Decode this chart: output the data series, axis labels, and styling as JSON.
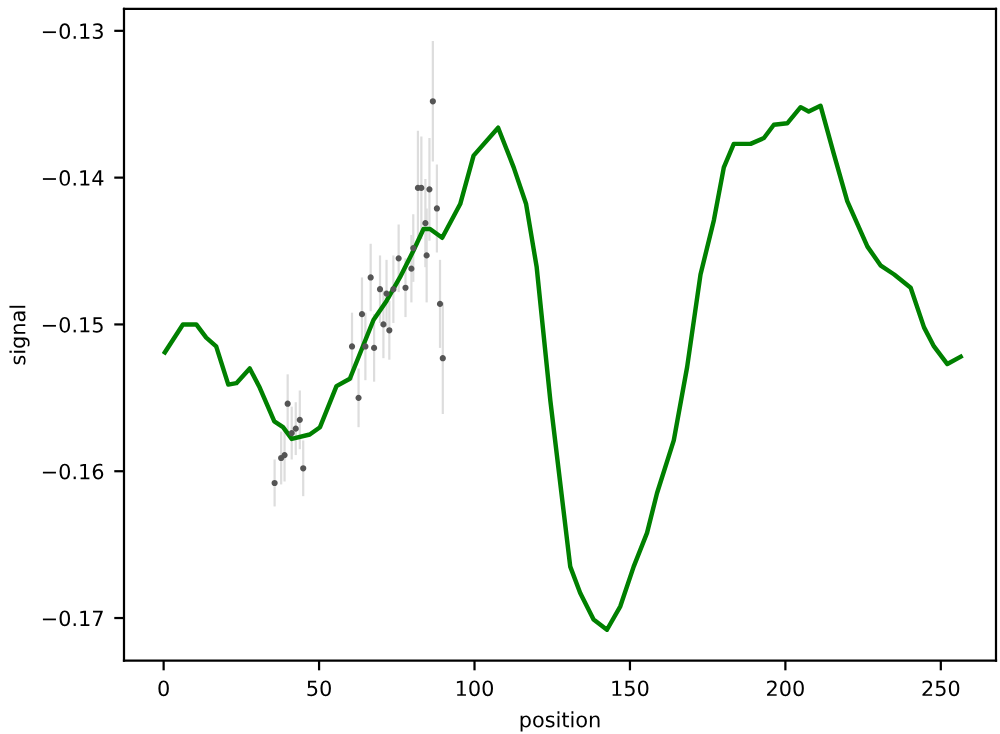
{
  "chart_data": {
    "type": "line",
    "xlabel": "position",
    "ylabel": "signal",
    "xlim": [
      -12.75,
      267.75
    ],
    "ylim": [
      -0.1729,
      -0.1285
    ],
    "xticks": [
      0,
      50,
      100,
      150,
      200,
      250
    ],
    "yticks": [
      {
        "value": -0.17,
        "label": "−0.17"
      },
      {
        "value": -0.16,
        "label": "−0.16"
      },
      {
        "value": -0.15,
        "label": "−0.15"
      },
      {
        "value": -0.14,
        "label": "−0.14"
      },
      {
        "value": -0.13,
        "label": "−0.13"
      }
    ],
    "grid": false,
    "series": [
      {
        "type": "scatter",
        "color": "#555555",
        "marker": "circle",
        "x": [
          35.7,
          37.8,
          38.9,
          39.9,
          41.2,
          42.5,
          43.8,
          44.9,
          60.6,
          62.7,
          63.8,
          64.9,
          66.6,
          67.7,
          69.6,
          70.7,
          71.7,
          72.6,
          73.9,
          75.6,
          77.8,
          79.7,
          80.3,
          81.8,
          82.9,
          84.2,
          84.6,
          85.5,
          86.6,
          87.9,
          88.9,
          89.8
        ],
        "values": [
          -0.1608,
          -0.1591,
          -0.1589,
          -0.1554,
          -0.1574,
          -0.1571,
          -0.1565,
          -0.1598,
          -0.1515,
          -0.155,
          -0.1493,
          -0.1515,
          -0.1468,
          -0.1516,
          -0.1476,
          -0.15,
          -0.1479,
          -0.1504,
          -0.1476,
          -0.1455,
          -0.1475,
          -0.1462,
          -0.1448,
          -0.1407,
          -0.1407,
          -0.1431,
          -0.1453,
          -0.1408,
          -0.1348,
          -0.1421,
          -0.1486,
          -0.1523
        ],
        "errors": [
          0.0016,
          0.0018,
          0.0018,
          0.002,
          0.0018,
          0.0018,
          0.002,
          0.0019,
          0.0023,
          0.002,
          0.0025,
          0.0023,
          0.0023,
          0.0023,
          0.0023,
          0.0023,
          0.0023,
          0.002,
          0.0023,
          0.0023,
          0.002,
          0.0023,
          0.0023,
          0.0039,
          0.0035,
          0.003,
          0.0032,
          0.0035,
          0.0041,
          0.003,
          0.003,
          0.0038
        ]
      },
      {
        "color": "#008000",
        "line_style": "solid",
        "x": [
          0.4,
          6.2,
          10.5,
          13.7,
          16.9,
          20.8,
          23.4,
          27.7,
          30.9,
          35.6,
          38.4,
          41.2,
          47.0,
          50.3,
          55.6,
          59.9,
          67.5,
          71.7,
          76.0,
          80.3,
          83.6,
          85.7,
          89.6,
          95.4,
          99.7,
          107.6,
          112.6,
          116.6,
          120.0,
          124.4,
          130.8,
          134.0,
          138.3,
          142.6,
          146.9,
          151.2,
          155.5,
          158.7,
          164.1,
          168.4,
          172.7,
          177.0,
          180.2,
          183.4,
          188.8,
          193.1,
          196.3,
          200.6,
          204.9,
          207.5,
          211.3,
          215.6,
          219.9,
          226.4,
          230.7,
          235.0,
          240.3,
          244.6,
          247.8,
          252.1,
          256.4
        ],
        "values": [
          -0.1519,
          -0.15,
          -0.15,
          -0.1509,
          -0.1515,
          -0.1541,
          -0.154,
          -0.153,
          -0.1543,
          -0.1566,
          -0.157,
          -0.1578,
          -0.1575,
          -0.157,
          -0.1542,
          -0.1537,
          -0.1497,
          -0.1484,
          -0.1468,
          -0.145,
          -0.1435,
          -0.1435,
          -0.1441,
          -0.1418,
          -0.1385,
          -0.1366,
          -0.1393,
          -0.1418,
          -0.1461,
          -0.1552,
          -0.1665,
          -0.1683,
          -0.1701,
          -0.1708,
          -0.1692,
          -0.1665,
          -0.1642,
          -0.1615,
          -0.1579,
          -0.1529,
          -0.1466,
          -0.1429,
          -0.1393,
          -0.1377,
          -0.1377,
          -0.1373,
          -0.1364,
          -0.1363,
          -0.1352,
          -0.1355,
          -0.1351,
          -0.1384,
          -0.1416,
          -0.1447,
          -0.146,
          -0.1466,
          -0.1475,
          -0.1502,
          -0.1515,
          -0.1527,
          -0.1522
        ]
      }
    ]
  }
}
